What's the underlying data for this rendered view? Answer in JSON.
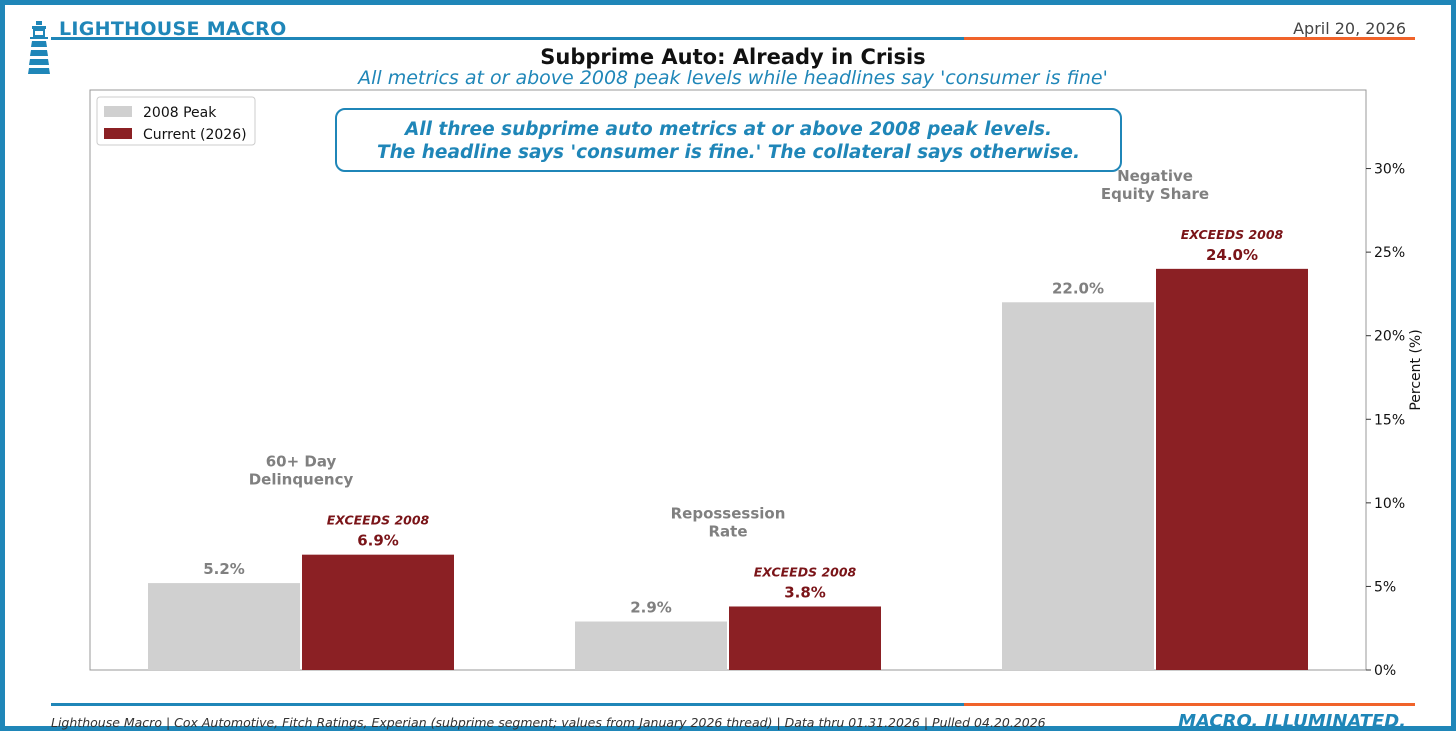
{
  "header": {
    "brand": "LIGHTHOUSE MACRO",
    "date": "April 20, 2026"
  },
  "colors": {
    "accent_blue": "#1f86b8",
    "accent_orange": "#f0632a",
    "peak_gray": "#d0d0d0",
    "current_red": "#8b2024",
    "label_gray": "#808080",
    "label_red": "#7a1418"
  },
  "footer": {
    "source": "Lighthouse Macro | Cox Automotive, Fitch Ratings, Experian (subprime segment; values from January 2026 thread) | Data thru 01.31.2026 | Pulled 04.20.2026",
    "tagline": "MACRO, ILLUMINATED."
  },
  "chart_data": {
    "type": "bar",
    "title": "Subprime Auto: Already in Crisis",
    "subtitle": "All metrics at or above 2008 peak levels while headlines say 'consumer is fine'",
    "categories": [
      [
        "60+ Day",
        "Delinquency"
      ],
      [
        "Repossession",
        "Rate"
      ],
      [
        "Negative",
        "Equity Share"
      ]
    ],
    "series": [
      {
        "name": "2008 Peak",
        "values": [
          5.2,
          2.9,
          22.0
        ],
        "labels": [
          "5.2%",
          "2.9%",
          "22.0%"
        ]
      },
      {
        "name": "Current (2026)",
        "values": [
          6.9,
          3.8,
          24.0
        ],
        "labels": [
          "6.9%",
          "3.8%",
          "24.0%"
        ]
      }
    ],
    "annotation_tags": [
      "EXCEEDS 2008",
      "EXCEEDS 2008",
      "EXCEEDS 2008"
    ],
    "callout": [
      "All three subprime auto metrics at or above 2008 peak levels.",
      "The headline says 'consumer is fine.' The collateral says otherwise."
    ],
    "ylabel": "Percent (%)",
    "ylim": [
      0,
      34.7
    ],
    "yticks": [
      0,
      5,
      10,
      15,
      20,
      25,
      30
    ],
    "ytick_labels": [
      "0%",
      "5%",
      "10%",
      "15%",
      "20%",
      "25%",
      "30%"
    ],
    "legend_position": "top-left",
    "grid": false
  }
}
